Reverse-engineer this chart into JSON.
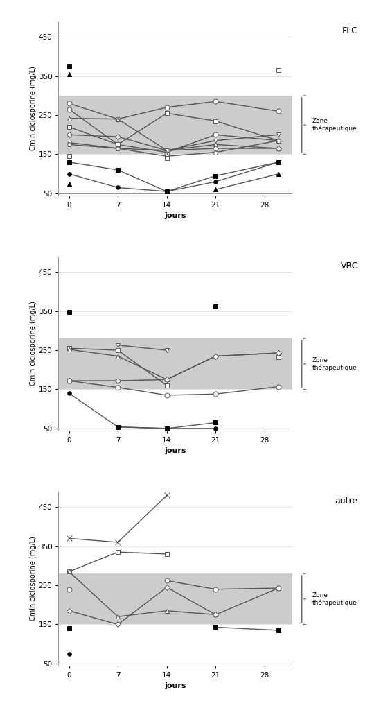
{
  "panels": [
    {
      "label": "FLC",
      "series": [
        {
          "x": [
            0,
            7,
            14,
            21,
            30
          ],
          "y": [
            375,
            null,
            null,
            null,
            null
          ],
          "marker": "s",
          "mfc": "black",
          "mec": "black",
          "ms": 5,
          "lw": 1.0
        },
        {
          "x": [
            0,
            7,
            14,
            21,
            30
          ],
          "y": [
            355,
            null,
            null,
            null,
            null
          ],
          "marker": "^",
          "mfc": "black",
          "mec": "black",
          "ms": 5,
          "lw": 1.0
        },
        {
          "x": [
            0,
            7,
            14,
            21,
            30
          ],
          "y": [
            280,
            240,
            270,
            285,
            260
          ],
          "marker": "o",
          "mfc": "white",
          "mec": "#555555",
          "ms": 5,
          "lw": 1.0
        },
        {
          "x": [
            0,
            7,
            14,
            21,
            30
          ],
          "y": [
            265,
            175,
            155,
            200,
            185
          ],
          "marker": "o",
          "mfc": "white",
          "mec": "#555555",
          "ms": 5,
          "lw": 1.0
        },
        {
          "x": [
            0,
            7,
            14,
            21,
            30
          ],
          "y": [
            242,
            240,
            160,
            175,
            165
          ],
          "marker": "^",
          "mfc": "white",
          "mec": "#555555",
          "ms": 5,
          "lw": 1.0
        },
        {
          "x": [
            0,
            7,
            14,
            21,
            30
          ],
          "y": [
            220,
            175,
            255,
            235,
            185
          ],
          "marker": "s",
          "mfc": "white",
          "mec": "#555555",
          "ms": 5,
          "lw": 1.0
        },
        {
          "x": [
            0,
            7,
            14,
            21,
            30
          ],
          "y": [
            200,
            195,
            160,
            165,
            165
          ],
          "marker": "D",
          "mfc": "white",
          "mec": "#555555",
          "ms": 4,
          "lw": 1.0
        },
        {
          "x": [
            0,
            7,
            14,
            21,
            30
          ],
          "y": [
            180,
            165,
            160,
            185,
            200
          ],
          "marker": "v",
          "mfc": "white",
          "mec": "#555555",
          "ms": 5,
          "lw": 1.0
        },
        {
          "x": [
            0,
            7,
            14,
            21,
            30
          ],
          "y": [
            175,
            165,
            145,
            155,
            185
          ],
          "marker": "p",
          "mfc": "white",
          "mec": "#555555",
          "ms": 5,
          "lw": 1.0
        },
        {
          "x": [
            0,
            7,
            14,
            21,
            30
          ],
          "y": [
            145,
            null,
            140,
            null,
            365
          ],
          "marker": "s",
          "mfc": "white",
          "mec": "#555555",
          "ms": 5,
          "lw": 1.0
        },
        {
          "x": [
            0,
            7,
            14,
            21,
            30
          ],
          "y": [
            130,
            110,
            55,
            95,
            130
          ],
          "marker": "s",
          "mfc": "black",
          "mec": "black",
          "ms": 4,
          "lw": 1.0
        },
        {
          "x": [
            0,
            7,
            14,
            21,
            30
          ],
          "y": [
            100,
            65,
            55,
            80,
            130
          ],
          "marker": "o",
          "mfc": "black",
          "mec": "black",
          "ms": 4,
          "lw": 1.0
        },
        {
          "x": [
            0,
            7,
            14,
            21,
            30
          ],
          "y": [
            75,
            null,
            null,
            60,
            100
          ],
          "marker": "^",
          "mfc": "black",
          "mec": "black",
          "ms": 4,
          "lw": 1.0
        }
      ],
      "yticks": [
        50,
        150,
        250,
        350,
        450
      ],
      "ylim": [
        45,
        490
      ],
      "zone": [
        150,
        300
      ]
    },
    {
      "label": "VRC",
      "series": [
        {
          "x": [
            0,
            7,
            14,
            21,
            30
          ],
          "y": [
            348,
            null,
            null,
            362,
            null
          ],
          "marker": "s",
          "mfc": "black",
          "mec": "black",
          "ms": 5,
          "lw": 1.0
        },
        {
          "x": [
            0,
            7,
            14,
            21,
            30
          ],
          "y": [
            255,
            250,
            160,
            null,
            232
          ],
          "marker": "s",
          "mfc": "white",
          "mec": "#555555",
          "ms": 5,
          "lw": 1.0
        },
        {
          "x": [
            0,
            7,
            14,
            21,
            30
          ],
          "y": [
            252,
            235,
            175,
            235,
            243
          ],
          "marker": "^",
          "mfc": "white",
          "mec": "#555555",
          "ms": 5,
          "lw": 1.0
        },
        {
          "x": [
            0,
            7,
            14,
            21,
            30
          ],
          "y": [
            172,
            172,
            175,
            235,
            243
          ],
          "marker": "D",
          "mfc": "white",
          "mec": "#555555",
          "ms": 4,
          "lw": 1.0
        },
        {
          "x": [
            0,
            7,
            14,
            21,
            30
          ],
          "y": [
            172,
            155,
            135,
            138,
            157
          ],
          "marker": "o",
          "mfc": "white",
          "mec": "#555555",
          "ms": 5,
          "lw": 1.0
        },
        {
          "x": [
            0,
            7,
            14,
            21,
            30
          ],
          "y": [
            null,
            263,
            250,
            null,
            null
          ],
          "marker": "v",
          "mfc": "white",
          "mec": "#555555",
          "ms": 5,
          "lw": 1.0
        },
        {
          "x": [
            0,
            7,
            14,
            21,
            30
          ],
          "y": [
            140,
            54,
            50,
            50,
            null
          ],
          "marker": "o",
          "mfc": "black",
          "mec": "black",
          "ms": 4,
          "lw": 1.0
        },
        {
          "x": [
            0,
            7,
            14,
            21,
            30
          ],
          "y": [
            null,
            54,
            50,
            65,
            null
          ],
          "marker": "s",
          "mfc": "black",
          "mec": "black",
          "ms": 4,
          "lw": 1.0
        }
      ],
      "yticks": [
        50,
        150,
        250,
        350,
        450
      ],
      "ylim": [
        45,
        490
      ],
      "zone": [
        150,
        280
      ]
    },
    {
      "label": "autre",
      "series": [
        {
          "x": [
            0,
            7,
            14,
            21,
            30
          ],
          "y": [
            370,
            360,
            480,
            null,
            null
          ],
          "marker": "x",
          "mfc": "#555555",
          "mec": "#555555",
          "ms": 6,
          "lw": 1.0
        },
        {
          "x": [
            0,
            7,
            14,
            21,
            30
          ],
          "y": [
            285,
            335,
            330,
            null,
            null
          ],
          "marker": "s",
          "mfc": "white",
          "mec": "#555555",
          "ms": 5,
          "lw": 1.0
        },
        {
          "x": [
            0,
            7,
            14,
            21,
            30
          ],
          "y": [
            285,
            170,
            185,
            175,
            243
          ],
          "marker": "^",
          "mfc": "white",
          "mec": "#555555",
          "ms": 5,
          "lw": 1.0
        },
        {
          "x": [
            0,
            7,
            14,
            21,
            30
          ],
          "y": [
            240,
            null,
            262,
            240,
            243
          ],
          "marker": "o",
          "mfc": "white",
          "mec": "#555555",
          "ms": 5,
          "lw": 1.0
        },
        {
          "x": [
            0,
            7,
            14,
            21,
            30
          ],
          "y": [
            185,
            150,
            245,
            175,
            null
          ],
          "marker": "D",
          "mfc": "white",
          "mec": "#555555",
          "ms": 4,
          "lw": 1.0
        },
        {
          "x": [
            0,
            7,
            14,
            21,
            30
          ],
          "y": [
            140,
            null,
            null,
            143,
            135
          ],
          "marker": "s",
          "mfc": "black",
          "mec": "black",
          "ms": 4,
          "lw": 1.0
        },
        {
          "x": [
            0,
            7,
            14,
            21,
            30
          ],
          "y": [
            75,
            null,
            null,
            null,
            null
          ],
          "marker": "o",
          "mfc": "black",
          "mec": "black",
          "ms": 4,
          "lw": 1.0
        }
      ],
      "yticks": [
        50,
        150,
        250,
        350,
        450
      ],
      "ylim": [
        45,
        490
      ],
      "zone": [
        150,
        280
      ]
    }
  ],
  "xticks": [
    0,
    7,
    14,
    21,
    28
  ],
  "xlim": [
    -1.5,
    32
  ],
  "xlabel": "jours",
  "ylabel": "Cmin ciclosporine (mg/L)",
  "zone_color": "#cccccc",
  "line_color": "#555555",
  "zone_label": "Zone\nthérapeutique",
  "figsize": [
    5.63,
    10.21
  ],
  "dpi": 100
}
